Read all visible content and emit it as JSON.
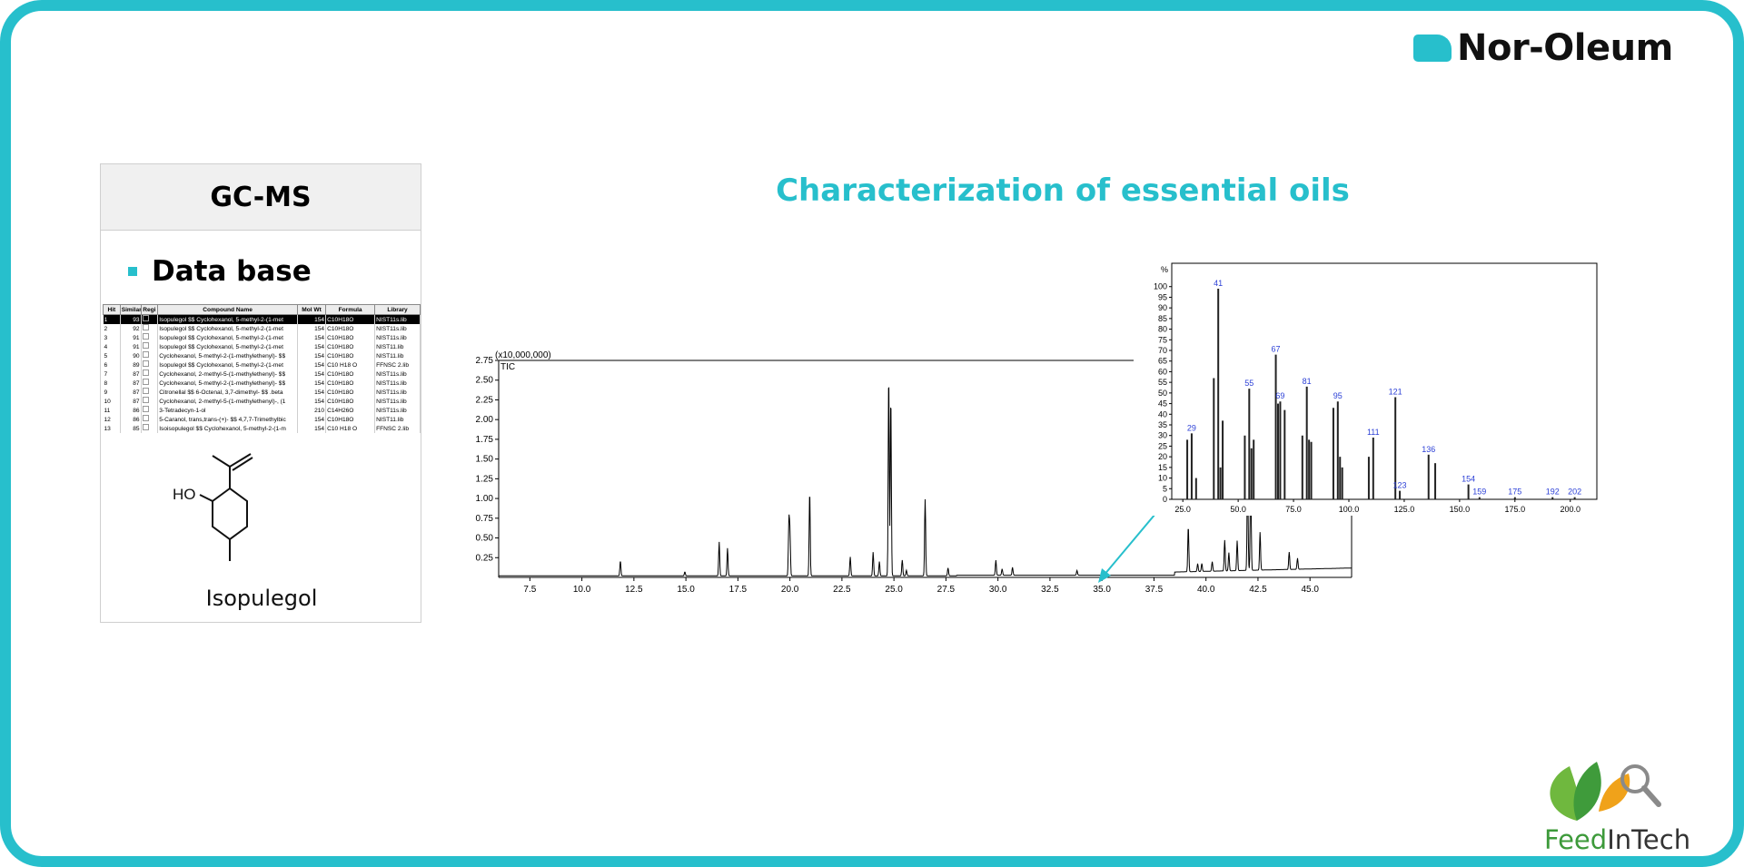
{
  "brand": {
    "name": "Nor-Oleum"
  },
  "title": "Characterization of essential oils",
  "panel": {
    "header": "GC-MS",
    "bullet": "Data base",
    "table": {
      "columns": [
        "Hit",
        "Similar",
        "Regi",
        "Compound Name",
        "Mol Wt",
        "Formula",
        "Library"
      ],
      "rows": [
        [
          "1",
          "93",
          "",
          "Isopulegol $$ Cyclohexanol, 5-methyl-2-(1-met",
          "154",
          "C10H18O",
          "NIST11s.lib"
        ],
        [
          "2",
          "92",
          "",
          "Isopulegol $$ Cyclohexanol, 5-methyl-2-(1-met",
          "154",
          "C10H18O",
          "NIST11s.lib"
        ],
        [
          "3",
          "91",
          "",
          "Isopulegol $$ Cyclohexanol, 5-methyl-2-(1-met",
          "154",
          "C10H18O",
          "NIST11s.lib"
        ],
        [
          "4",
          "91",
          "",
          "Isopulegol $$ Cyclohexanol, 5-methyl-2-(1-met",
          "154",
          "C10H18O",
          "NIST11.lib"
        ],
        [
          "5",
          "90",
          "",
          "Cyclohexanol, 5-methyl-2-(1-methylethenyl)- $$",
          "154",
          "C10H18O",
          "NIST11.lib"
        ],
        [
          "6",
          "89",
          "",
          "Isopulegol $$ Cyclohexanol, 5-methyl-2-(1-met",
          "154",
          "C10 H18 O",
          "FFNSC 2.lib"
        ],
        [
          "7",
          "87",
          "",
          "Cyclohexanol, 2-methyl-5-(1-methylethenyl)- $$",
          "154",
          "C10H18O",
          "NIST11s.lib"
        ],
        [
          "8",
          "87",
          "",
          "Cyclohexanol, 5-methyl-2-(1-methylethenyl)- $$",
          "154",
          "C10H18O",
          "NIST11s.lib"
        ],
        [
          "9",
          "87",
          "",
          "Citronellal $$ 6-Octenal, 3,7-dimethyl- $$ .beta",
          "154",
          "C10H18O",
          "NIST11s.lib"
        ],
        [
          "10",
          "87",
          "",
          "Cyclohexanol, 2-methyl-5-(1-methylethenyl)-, (1",
          "154",
          "C10H18O",
          "NIST11s.lib"
        ],
        [
          "11",
          "86",
          "",
          "3-Tetradecyn-1-ol",
          "210",
          "C14H26O",
          "NIST11s.lib"
        ],
        [
          "12",
          "86",
          "",
          "5-Caranol, trans,trans-(+)- $$ 4,7,7-Trimethylbic",
          "154",
          "C10H18O",
          "NIST11.lib"
        ],
        [
          "13",
          "85",
          "",
          "Isoisopulegol $$ Cyclohexanol, 5-methyl-2-(1-m",
          "154",
          "C10 H18 O",
          "FFNSC 2.lib"
        ]
      ]
    },
    "structure_label": "HO",
    "compound": "Isopulegol"
  },
  "chart_data": [
    {
      "type": "line",
      "multiplier_label": "(x10,000,000)",
      "series_label": "TIC",
      "xlim": [
        6.0,
        47.0
      ],
      "ylim": [
        0,
        2.75
      ],
      "xticks": [
        "7.5",
        "10.0",
        "12.5",
        "15.0",
        "17.5",
        "20.0",
        "22.5",
        "25.0",
        "27.5",
        "30.0",
        "32.5",
        "35.0",
        "37.5",
        "40.0",
        "42.5",
        "45.0"
      ],
      "yticks": [
        "0.25",
        "0.50",
        "0.75",
        "1.00",
        "1.25",
        "1.50",
        "1.75",
        "2.00",
        "2.25",
        "2.50",
        "2.75"
      ],
      "peaks": [
        {
          "x": 11.85,
          "y": 0.19
        },
        {
          "x": 14.95,
          "y": 0.05
        },
        {
          "x": 16.6,
          "y": 0.43
        },
        {
          "x": 17.0,
          "y": 0.35
        },
        {
          "x": 19.95,
          "y": 0.68
        },
        {
          "x": 20.0,
          "y": 0.55
        },
        {
          "x": 20.95,
          "y": 1.08
        },
        {
          "x": 22.9,
          "y": 0.24
        },
        {
          "x": 24.0,
          "y": 0.3
        },
        {
          "x": 24.3,
          "y": 0.18
        },
        {
          "x": 24.75,
          "y": 2.58
        },
        {
          "x": 24.85,
          "y": 2.3
        },
        {
          "x": 25.4,
          "y": 0.2
        },
        {
          "x": 25.6,
          "y": 0.07
        },
        {
          "x": 26.5,
          "y": 0.97
        },
        {
          "x": 27.6,
          "y": 0.1
        },
        {
          "x": 29.9,
          "y": 0.19
        },
        {
          "x": 30.2,
          "y": 0.08
        },
        {
          "x": 30.7,
          "y": 0.1
        },
        {
          "x": 33.8,
          "y": 0.06
        },
        {
          "x": 39.15,
          "y": 0.58
        },
        {
          "x": 39.6,
          "y": 0.1
        },
        {
          "x": 39.8,
          "y": 0.1
        },
        {
          "x": 40.3,
          "y": 0.12
        },
        {
          "x": 40.9,
          "y": 0.39
        },
        {
          "x": 41.1,
          "y": 0.23
        },
        {
          "x": 41.5,
          "y": 0.38
        },
        {
          "x": 42.0,
          "y": 1.29
        },
        {
          "x": 42.15,
          "y": 1.2
        },
        {
          "x": 42.6,
          "y": 0.48
        },
        {
          "x": 44.0,
          "y": 0.22
        },
        {
          "x": 44.4,
          "y": 0.14
        }
      ]
    },
    {
      "type": "bar",
      "ylabel": "%",
      "xlim": [
        20,
        212
      ],
      "ylim": [
        0,
        105
      ],
      "xticks": [
        "25.0",
        "50.0",
        "75.0",
        "100.0",
        "125.0",
        "150.0",
        "175.0",
        "200.0"
      ],
      "yticks": [
        "0",
        "5",
        "10",
        "15",
        "20",
        "25",
        "30",
        "35",
        "40",
        "45",
        "50",
        "55",
        "60",
        "65",
        "70",
        "75",
        "80",
        "85",
        "90",
        "95",
        "100"
      ],
      "peaks": [
        {
          "x": 27,
          "y": 28
        },
        {
          "x": 29,
          "y": 31,
          "label": "29"
        },
        {
          "x": 31,
          "y": 10
        },
        {
          "x": 39,
          "y": 57
        },
        {
          "x": 41,
          "y": 99,
          "label": "41"
        },
        {
          "x": 42,
          "y": 15
        },
        {
          "x": 43,
          "y": 37
        },
        {
          "x": 53,
          "y": 30
        },
        {
          "x": 55,
          "y": 52,
          "label": "55"
        },
        {
          "x": 56,
          "y": 24
        },
        {
          "x": 57,
          "y": 28
        },
        {
          "x": 67,
          "y": 68,
          "label": "67"
        },
        {
          "x": 68,
          "y": 45
        },
        {
          "x": 69,
          "y": 46,
          "label": "69"
        },
        {
          "x": 71,
          "y": 42
        },
        {
          "x": 79,
          "y": 30
        },
        {
          "x": 81,
          "y": 53,
          "label": "81"
        },
        {
          "x": 82,
          "y": 28
        },
        {
          "x": 83,
          "y": 27
        },
        {
          "x": 93,
          "y": 43
        },
        {
          "x": 95,
          "y": 46,
          "label": "95"
        },
        {
          "x": 96,
          "y": 20
        },
        {
          "x": 97,
          "y": 15
        },
        {
          "x": 109,
          "y": 20
        },
        {
          "x": 111,
          "y": 29,
          "label": "111"
        },
        {
          "x": 121,
          "y": 48,
          "label": "121"
        },
        {
          "x": 123,
          "y": 4,
          "label": "123"
        },
        {
          "x": 136,
          "y": 21,
          "label": "136"
        },
        {
          "x": 139,
          "y": 17
        },
        {
          "x": 154,
          "y": 7,
          "label": "154"
        },
        {
          "x": 159,
          "y": 1,
          "label": "159"
        },
        {
          "x": 175,
          "y": 1,
          "label": "175"
        },
        {
          "x": 192,
          "y": 1,
          "label": "192"
        },
        {
          "x": 202,
          "y": 1,
          "label": "202"
        }
      ]
    }
  ],
  "feedintech": {
    "part1": "Feed",
    "part2": "InTech"
  }
}
